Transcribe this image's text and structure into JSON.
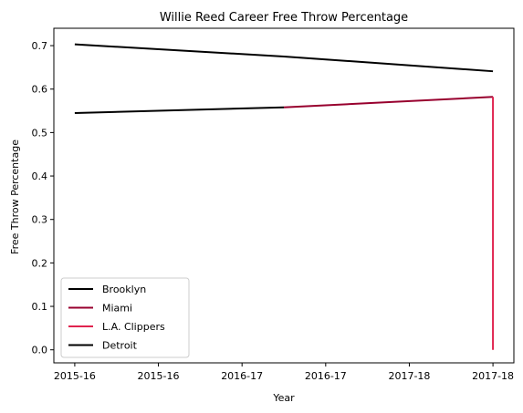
{
  "chart_data": {
    "type": "line",
    "title": "Willie Reed Career Free Throw Percentage",
    "xlabel": "Year",
    "ylabel": "Free Throw Percentage",
    "x_tick_labels": [
      "2015-16",
      "2015-16",
      "2016-17",
      "2016-17",
      "2017-18",
      "2017-18"
    ],
    "xlim": [
      -0.25,
      5.25
    ],
    "ylim": [
      -0.03,
      0.74
    ],
    "y_ticks": [
      0.0,
      0.1,
      0.2,
      0.3,
      0.4,
      0.5,
      0.6,
      0.7
    ],
    "y_tick_labels": [
      "0.0",
      "0.1",
      "0.2",
      "0.3",
      "0.4",
      "0.5",
      "0.6",
      "0.7"
    ],
    "grid": false,
    "legend": "lower-left",
    "series": [
      {
        "name": "Brooklyn",
        "color": "#000000",
        "x": [
          0,
          2.5
        ],
        "y": [
          0.545,
          0.558
        ]
      },
      {
        "name": "Miami",
        "color": "#98002E",
        "x": [
          2.5,
          5
        ],
        "y": [
          0.558,
          0.582
        ]
      },
      {
        "name": "L.A. Clippers",
        "color": "#E0234E",
        "x": [
          5,
          5
        ],
        "y": [
          0.582,
          0.0
        ]
      },
      {
        "name": "Detroit",
        "color": "#000000",
        "x": [
          0,
          2.5,
          5
        ],
        "y": [
          0.703,
          0.675,
          0.641
        ]
      }
    ]
  }
}
